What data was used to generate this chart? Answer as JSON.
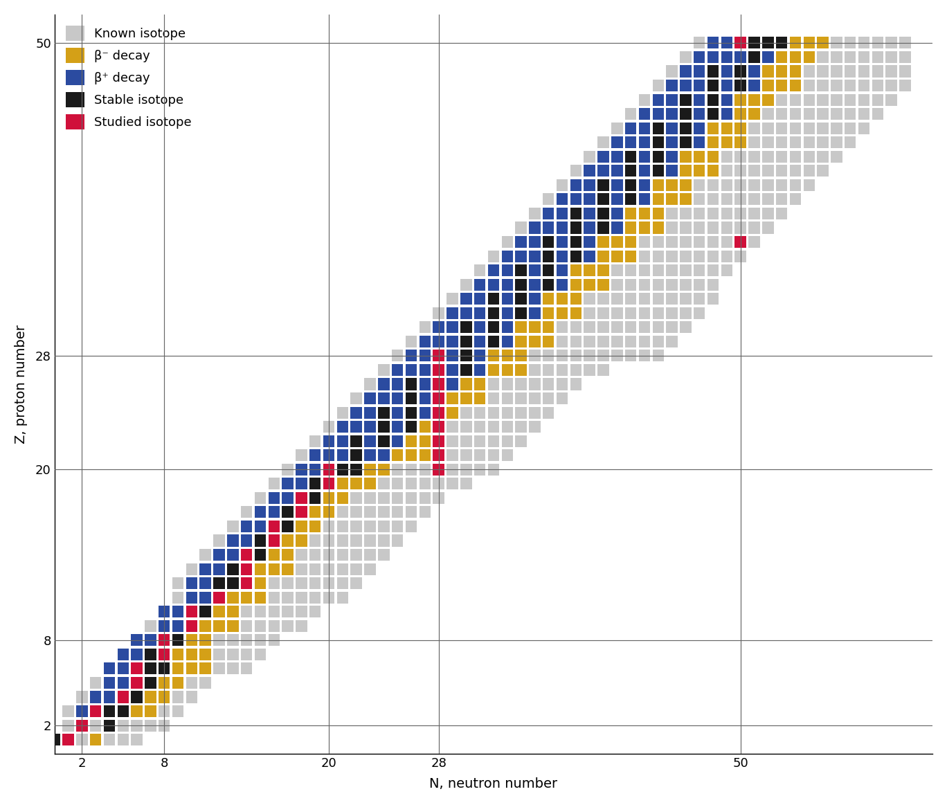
{
  "xlabel": "N, neutron number",
  "ylabel": "Z, proton number",
  "magic_numbers": [
    2,
    8,
    20,
    28,
    50
  ],
  "colors": {
    "known": "#C8C8C8",
    "beta_minus": "#D4A017",
    "beta_plus": "#2B4BA0",
    "stable": "#1A1A1A",
    "studied": "#D0103A"
  },
  "legend_labels": {
    "known": "Known isotope",
    "beta_minus": "β⁻ decay",
    "beta_plus": "β⁺ decay",
    "stable": "Stable isotope",
    "studied": "Studied isotope"
  },
  "xticks": [
    2,
    8,
    20,
    28,
    50
  ],
  "yticks": [
    2,
    8,
    20,
    28,
    50
  ]
}
